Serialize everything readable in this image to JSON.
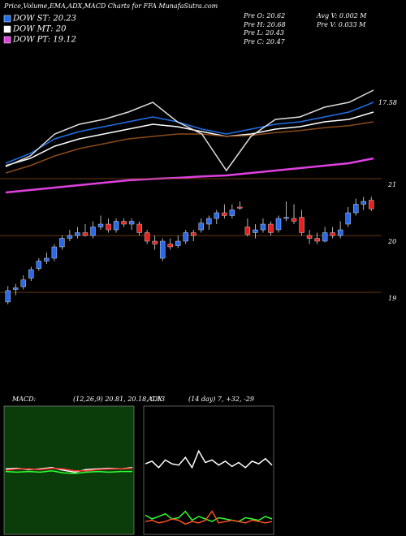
{
  "header": {
    "title": "Price,Volume,EMA,ADX,MACD Charts for FFA MunafaSutra.com",
    "info": [
      "Pre  O: 20.62",
      "Pre  H: 20.68",
      "Pre  L: 20.43",
      "Pre  C: 20.47",
      "Avg  V: 0.002  M",
      "Pre  V: 0.033  M"
    ]
  },
  "chart_data": [
    {
      "type": "line",
      "ylim": [
        15.7,
        18.7
      ],
      "yticks": [
        17.58
      ],
      "series": [
        {
          "name": "DOW ST: 20.23",
          "color": "#1f6fe8",
          "values": [
            16.35,
            16.55,
            16.85,
            17.0,
            17.1,
            17.2,
            17.3,
            17.2,
            17.05,
            16.95,
            17.05,
            17.15,
            17.2,
            17.3,
            17.4,
            17.6
          ]
        },
        {
          "name": "DOW MT: 20",
          "color": "#ffffff",
          "values": [
            16.3,
            16.45,
            16.7,
            16.85,
            16.95,
            17.05,
            17.15,
            17.1,
            17.0,
            16.9,
            16.95,
            17.05,
            17.1,
            17.2,
            17.25,
            17.4
          ]
        },
        {
          "name": "DOW PT: 19.12",
          "color": "#e040e0",
          "values": [
            15.75,
            15.8,
            15.85,
            15.9,
            15.95,
            16.0,
            16.03,
            16.05,
            16.08,
            16.1,
            16.15,
            16.2,
            16.25,
            16.3,
            16.35,
            16.45
          ]
        },
        {
          "color": "#8a4a1a",
          "values": [
            16.15,
            16.3,
            16.5,
            16.65,
            16.75,
            16.85,
            16.9,
            16.95,
            16.95,
            16.9,
            16.92,
            16.98,
            17.02,
            17.08,
            17.12,
            17.2
          ]
        },
        {
          "color": "#dddddd",
          "values": [
            16.28,
            16.5,
            16.95,
            17.15,
            17.25,
            17.4,
            17.6,
            17.2,
            16.95,
            16.2,
            16.9,
            17.25,
            17.3,
            17.5,
            17.6,
            17.85
          ]
        }
      ]
    },
    {
      "type": "candlestick",
      "ylim": [
        18.4,
        21.3
      ],
      "yticks": [
        19,
        20,
        21
      ],
      "up_color": "#2a6ae8",
      "down_color": "#e82020",
      "candles": [
        [
          18.83,
          19.11,
          18.79,
          19.03
        ],
        [
          19.05,
          19.15,
          18.95,
          19.08
        ],
        [
          19.1,
          19.3,
          19.05,
          19.22
        ],
        [
          19.25,
          19.45,
          19.2,
          19.4
        ],
        [
          19.42,
          19.6,
          19.38,
          19.55
        ],
        [
          19.55,
          19.7,
          19.5,
          19.6
        ],
        [
          19.6,
          19.85,
          19.55,
          19.8
        ],
        [
          19.8,
          20.0,
          19.75,
          19.95
        ],
        [
          19.95,
          20.1,
          19.9,
          20.0
        ],
        [
          20.0,
          20.15,
          19.95,
          20.05
        ],
        [
          20.05,
          20.2,
          19.98,
          20.0
        ],
        [
          20.0,
          20.25,
          19.95,
          20.15
        ],
        [
          20.15,
          20.35,
          20.1,
          20.2
        ],
        [
          20.2,
          20.3,
          20.05,
          20.1
        ],
        [
          20.1,
          20.3,
          20.05,
          20.25
        ],
        [
          20.25,
          20.3,
          20.15,
          20.2
        ],
        [
          20.2,
          20.3,
          20.1,
          20.25
        ],
        [
          20.2,
          20.25,
          20.0,
          20.05
        ],
        [
          20.05,
          20.1,
          19.85,
          19.9
        ],
        [
          19.9,
          20.0,
          19.75,
          19.85
        ],
        [
          19.6,
          19.95,
          19.55,
          19.9
        ],
        [
          19.85,
          19.95,
          19.75,
          19.8
        ],
        [
          19.82,
          20.0,
          19.78,
          19.9
        ],
        [
          19.9,
          20.1,
          19.85,
          20.05
        ],
        [
          20.05,
          20.1,
          19.9,
          20.0
        ],
        [
          20.1,
          20.3,
          20.05,
          20.22
        ],
        [
          20.2,
          20.35,
          20.1,
          20.3
        ],
        [
          20.3,
          20.45,
          20.2,
          20.4
        ],
        [
          20.4,
          20.55,
          20.3,
          20.35
        ],
        [
          20.35,
          20.55,
          20.3,
          20.45
        ],
        [
          20.5,
          20.6,
          20.45,
          20.48
        ],
        [
          20.15,
          20.3,
          19.98,
          20.02
        ],
        [
          20.05,
          20.2,
          19.95,
          20.1
        ],
        [
          20.1,
          20.3,
          20.05,
          20.2
        ],
        [
          20.2,
          20.25,
          20.0,
          20.05
        ],
        [
          20.1,
          20.35,
          20.05,
          20.3
        ],
        [
          20.3,
          20.6,
          20.25,
          20.32
        ],
        [
          20.3,
          20.55,
          20.2,
          20.25
        ],
        [
          20.32,
          20.45,
          20.0,
          20.05
        ],
        [
          20.0,
          20.1,
          19.85,
          19.95
        ],
        [
          19.95,
          20.05,
          19.85,
          19.9
        ],
        [
          19.9,
          20.15,
          19.88,
          20.05
        ],
        [
          20.05,
          20.15,
          19.95,
          20.0
        ],
        [
          20.0,
          20.25,
          19.95,
          20.1
        ],
        [
          20.2,
          20.5,
          20.15,
          20.4
        ],
        [
          20.4,
          20.65,
          20.35,
          20.55
        ],
        [
          20.55,
          20.68,
          20.45,
          20.6
        ],
        [
          20.62,
          20.68,
          20.43,
          20.47
        ]
      ]
    },
    {
      "type": "line",
      "title": "MACD:",
      "subtitle": "(12,26,9) 20.81, 20.18, 0.13",
      "ylim": [
        -1,
        1
      ],
      "background": "#0b3d0b",
      "series": [
        {
          "color": "#ffffff",
          "values": [
            0.02,
            0.03,
            0.01,
            0.02,
            0.04,
            0.0,
            -0.03,
            0.01,
            0.02,
            0.03,
            0.02,
            0.04
          ]
        },
        {
          "color": "#ff3030",
          "values": [
            0.0,
            0.02,
            0.02,
            0.01,
            0.03,
            0.02,
            -0.01,
            -0.01,
            0.01,
            0.02,
            0.02,
            0.03
          ]
        },
        {
          "color": "#30ff30",
          "values": [
            -0.02,
            -0.03,
            -0.02,
            -0.03,
            -0.01,
            -0.04,
            -0.05,
            -0.03,
            -0.02,
            -0.03,
            -0.02,
            -0.02
          ]
        }
      ]
    },
    {
      "type": "line",
      "title": "ADX",
      "subtitle": "(14 day) 7, +32, -29",
      "ylim": [
        0,
        100
      ],
      "background": "#000000",
      "series": [
        {
          "color": "#ffffff",
          "values": [
            55,
            57,
            52,
            58,
            55,
            54,
            60,
            52,
            65,
            56,
            58,
            54,
            57,
            53,
            56,
            52,
            57,
            55,
            59,
            54
          ]
        },
        {
          "color": "#30ff30",
          "values": [
            15,
            12,
            14,
            16,
            12,
            13,
            18,
            11,
            14,
            12,
            10,
            13,
            12,
            11,
            10,
            13,
            12,
            11,
            14,
            12
          ]
        },
        {
          "color": "#ff5020",
          "values": [
            10,
            11,
            9,
            10,
            12,
            11,
            8,
            10,
            9,
            11,
            18,
            9,
            10,
            11,
            10,
            9,
            11,
            10,
            9,
            10
          ]
        }
      ]
    }
  ]
}
